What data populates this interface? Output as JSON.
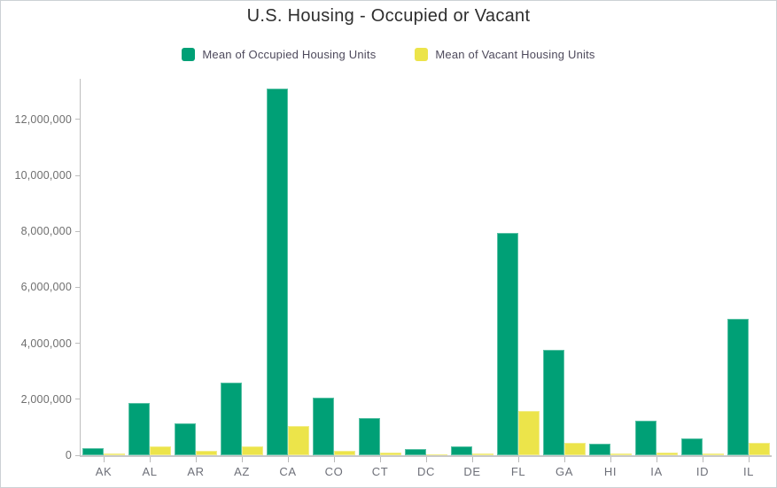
{
  "chart_data": {
    "type": "bar",
    "title": "U.S. Housing - Occupied or Vacant",
    "xlabel": "",
    "ylabel": "",
    "categories": [
      "AK",
      "AL",
      "AR",
      "AZ",
      "CA",
      "CO",
      "CT",
      "DC",
      "DE",
      "FL",
      "GA",
      "HI",
      "IA",
      "ID",
      "IL"
    ],
    "series": [
      {
        "name": "Mean of Occupied Housing Units",
        "color": "#00a076",
        "values": [
          250000,
          1855000,
          1125000,
          2600000,
          13100000,
          2065000,
          1320000,
          215000,
          315000,
          7930000,
          3780000,
          410000,
          1240000,
          595000,
          4870000
        ]
      },
      {
        "name": "Mean of Vacant Housing Units",
        "color": "#ece44a",
        "values": [
          55000,
          320000,
          160000,
          330000,
          1045000,
          165000,
          80000,
          20000,
          70000,
          1575000,
          435000,
          60000,
          110000,
          60000,
          445000
        ]
      }
    ],
    "ylim": [
      0,
      13450000
    ],
    "ytick_interval": 2000000,
    "ytick_labels": [
      "0",
      "2,000,000",
      "4,000,000",
      "6,000,000",
      "8,000,000",
      "10,000,000",
      "12,000,000"
    ],
    "grid": false,
    "legend_position": "top"
  },
  "colors": {
    "title_text": "#2e2e2e",
    "legend_text": "#4e4a5c",
    "axis_line": "#bdbdbd",
    "baseline": "#c9c9c9",
    "tick_text": "#6e6e6e",
    "frame_border": "#ccd1d5",
    "background": "#ffffff"
  }
}
